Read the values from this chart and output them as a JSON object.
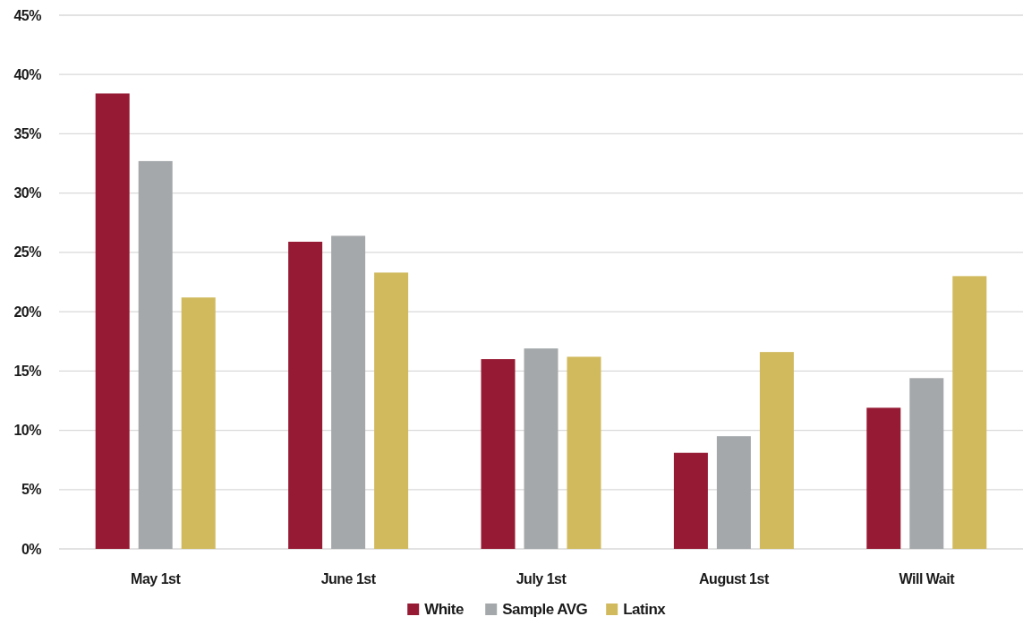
{
  "chart_data": {
    "type": "bar",
    "categories": [
      "May 1st",
      "June 1st",
      "July 1st",
      "August 1st",
      "Will Wait"
    ],
    "series": [
      {
        "name": "White",
        "color": "#961a33",
        "values": [
          38.4,
          25.9,
          16.0,
          8.1,
          11.9
        ]
      },
      {
        "name": "Sample AVG",
        "color": "#a5a8aa",
        "values": [
          32.7,
          26.4,
          16.9,
          9.5,
          14.4
        ]
      },
      {
        "name": "Latinx",
        "color": "#d1ba5e",
        "values": [
          21.2,
          23.3,
          16.2,
          16.6,
          23.0
        ]
      }
    ],
    "ylim": [
      0,
      45
    ],
    "yticks": [
      {
        "value": 0,
        "label": "0%"
      },
      {
        "value": 5,
        "label": "5%"
      },
      {
        "value": 10,
        "label": "10%"
      },
      {
        "value": 15,
        "label": "15%"
      },
      {
        "value": 20,
        "label": "20%"
      },
      {
        "value": 25,
        "label": "25%"
      },
      {
        "value": 30,
        "label": "30%"
      },
      {
        "value": 35,
        "label": "35%"
      },
      {
        "value": 40,
        "label": "40%"
      },
      {
        "value": 45,
        "label": "45%"
      }
    ],
    "grid": "y",
    "legend": "bottom"
  }
}
